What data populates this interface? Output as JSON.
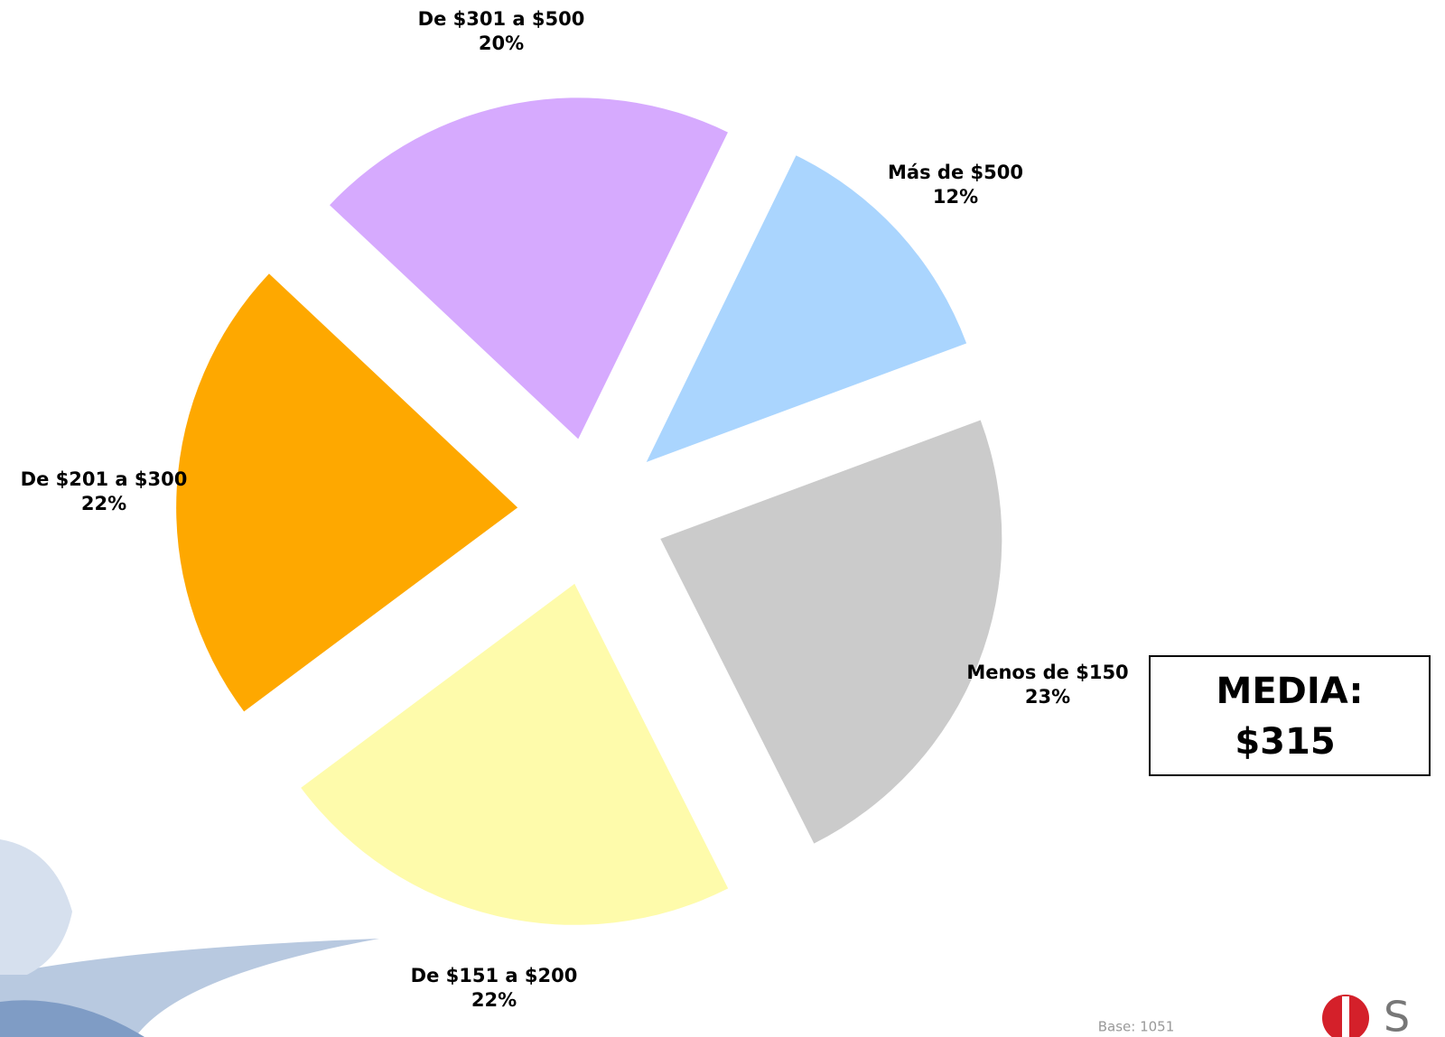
{
  "chart_data": {
    "type": "pie",
    "categories": [
      "Más de $500",
      "Menos de $150",
      "De $151 a $200",
      "De $201 a $300",
      "De $301 a $500"
    ],
    "values": [
      12,
      23,
      22,
      22,
      20
    ],
    "value_labels": [
      "12%",
      "23%",
      "22%",
      "22%",
      "20%"
    ],
    "colors": [
      "#aad5fe",
      "#cbcbcb",
      "#fefbab",
      "#fea800",
      "#d6aafe"
    ],
    "annotations": {
      "media_label": "MEDIA:",
      "media_value": "$315",
      "base": "Base: 1051"
    }
  }
}
